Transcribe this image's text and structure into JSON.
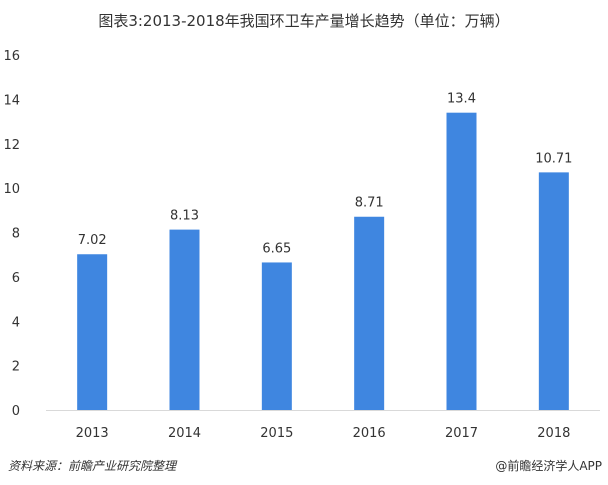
{
  "title": "图表3:2013-2018年我国环卫车产量增长趋势（单位：万辆）",
  "footer": {
    "source": "资料来源：前瞻产业研究院整理",
    "brand": "@前瞻经济学人APP"
  },
  "colors": {
    "bar": "#3f86e0",
    "axis": "#d9d9d9"
  },
  "chart_data": {
    "type": "bar",
    "title": "图表3:2013-2018年我国环卫车产量增长趋势（单位：万辆）",
    "categories": [
      "2013",
      "2014",
      "2015",
      "2016",
      "2017",
      "2018"
    ],
    "values": [
      7.02,
      8.13,
      6.65,
      8.71,
      13.4,
      10.71
    ],
    "data_labels": [
      "7.02",
      "8.13",
      "6.65",
      "8.71",
      "13.4",
      "10.71"
    ],
    "yticks": [
      "0",
      "2",
      "4",
      "6",
      "8",
      "10",
      "12",
      "14",
      "16"
    ],
    "ylim": [
      0,
      16
    ],
    "xlabel": "",
    "ylabel": "",
    "grid": false,
    "legend": "none"
  }
}
